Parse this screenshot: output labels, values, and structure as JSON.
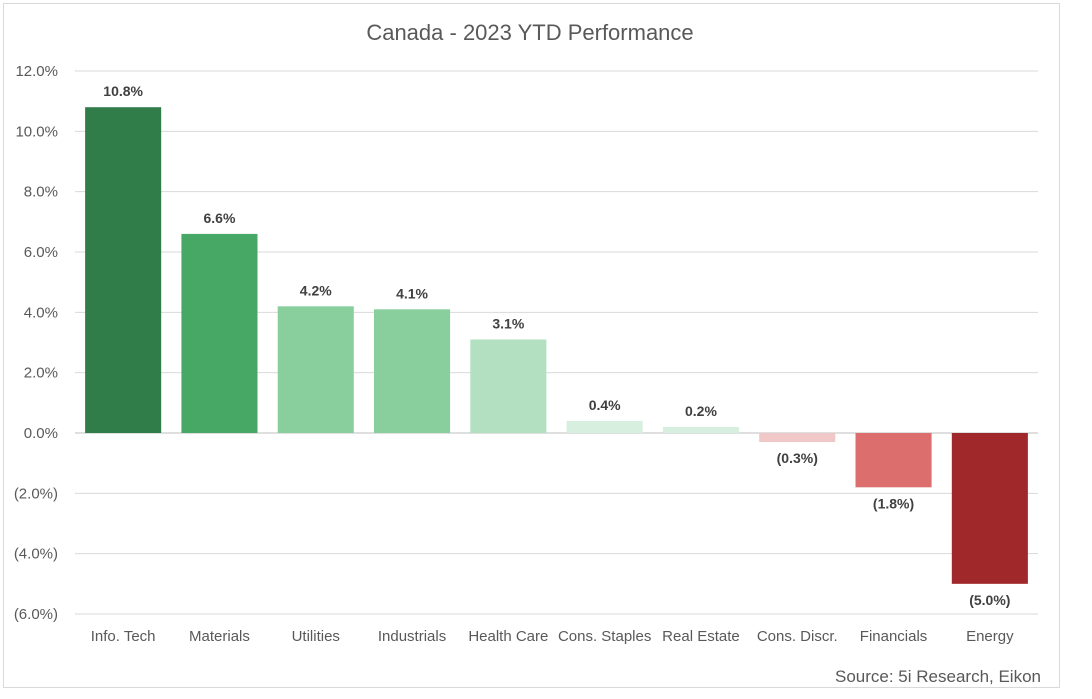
{
  "chart_data": {
    "type": "bar",
    "title": "Canada - 2023 YTD Performance",
    "categories": [
      "Info. Tech",
      "Materials",
      "Utilities",
      "Industrials",
      "Health Care",
      "Cons. Staples",
      "Real Estate",
      "Cons. Discr.",
      "Financials",
      "Energy"
    ],
    "values": [
      10.8,
      6.6,
      4.2,
      4.1,
      3.1,
      0.4,
      0.2,
      -0.3,
      -1.8,
      -5.0
    ],
    "data_labels": [
      "10.8%",
      "6.6%",
      "4.2%",
      "4.1%",
      "3.1%",
      "0.4%",
      "0.2%",
      "(0.3%)",
      "(1.8%)",
      "(5.0%)"
    ],
    "colors": [
      "#317d4a",
      "#47a865",
      "#88cf9d",
      "#88cf9d",
      "#b2e0c0",
      "#d7efdf",
      "#d7efdf",
      "#f0c8c8",
      "#dd6e6e",
      "#a0282b"
    ],
    "ylim": [
      -6,
      12
    ],
    "yticks": [
      12,
      10,
      8,
      6,
      4,
      2,
      0,
      -2,
      -4,
      -6
    ],
    "ytick_labels": [
      "12.0%",
      "10.0%",
      "8.0%",
      "6.0%",
      "4.0%",
      "2.0%",
      "0.0%",
      "(2.0%)",
      "(4.0%)",
      "(6.0%)"
    ],
    "xlabel": "",
    "ylabel": "",
    "grid": true,
    "legend": "none"
  },
  "source": "Source: 5i Research, Eikon"
}
